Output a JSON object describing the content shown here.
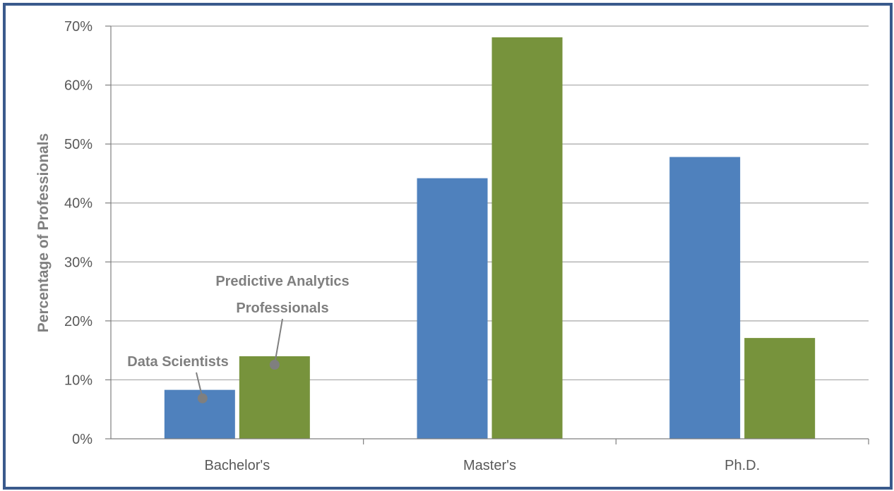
{
  "chart_data": {
    "type": "bar",
    "categories": [
      "Bachelor's",
      "Master's",
      "Ph.D."
    ],
    "series": [
      {
        "name": "Data Scientists",
        "values": [
          8.3,
          44.2,
          47.8
        ],
        "color": "#4f81bd"
      },
      {
        "name": "Predictive Analytics Professionals",
        "values": [
          14.0,
          68.1,
          17.1
        ],
        "color": "#77933c"
      }
    ],
    "ylabel": "Percentage of Professionals",
    "ylim": [
      0,
      70
    ],
    "yticks": [
      "0%",
      "10%",
      "20%",
      "30%",
      "40%",
      "50%",
      "60%",
      "70%"
    ],
    "grid": true,
    "gridColor": "#a6a6a6",
    "callouts": [
      {
        "series": 0,
        "category": 0,
        "lines": [
          "Data Scientists"
        ]
      },
      {
        "series": 1,
        "category": 0,
        "lines": [
          "Predictive Analytics",
          "Professionals"
        ]
      }
    ]
  }
}
